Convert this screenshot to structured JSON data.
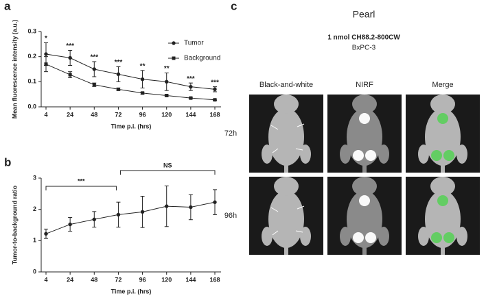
{
  "panel_labels": [
    "a",
    "b",
    "c"
  ],
  "chart_data": [
    {
      "type": "line",
      "categories": [
        "4",
        "24",
        "48",
        "72",
        "96",
        "120",
        "144",
        "168"
      ],
      "x_label": "Time p.i. (hrs)",
      "y_label": "Mean fluorescence intensity (a.u.)",
      "ylim": [
        0,
        0.3
      ],
      "yticks": [
        {
          "value": 0,
          "label": "0.0"
        },
        {
          "value": 0.1,
          "label": "0.1"
        },
        {
          "value": 0.2,
          "label": "0.2"
        },
        {
          "value": 0.3,
          "label": "0.3"
        }
      ],
      "legend": "upper right",
      "series": [
        {
          "name": "Tumor",
          "color": "#222222",
          "marker": "circle",
          "values": [
            0.21,
            0.195,
            0.15,
            0.13,
            0.11,
            0.1,
            0.08,
            0.07
          ],
          "errors": [
            0.045,
            0.03,
            0.03,
            0.03,
            0.035,
            0.035,
            0.015,
            0.01
          ]
        },
        {
          "name": "Background",
          "color": "#222222",
          "marker": "square",
          "values": [
            0.17,
            0.128,
            0.088,
            0.07,
            0.055,
            0.045,
            0.035,
            0.028
          ],
          "errors": [
            0.03,
            0.012,
            0.007,
            0.005,
            0.004,
            0.004,
            0.003,
            0.002
          ]
        }
      ],
      "annotations": [
        "*",
        "***",
        "***",
        "***",
        "**",
        "**",
        "***",
        "***"
      ]
    },
    {
      "type": "line",
      "categories": [
        "4",
        "24",
        "48",
        "72",
        "96",
        "120",
        "144",
        "168"
      ],
      "x_label": "Time p.i. (hrs)",
      "y_label": "Tumor-to-background ratio",
      "ylim": [
        0,
        3
      ],
      "yticks": [
        0,
        1,
        2,
        3
      ],
      "series": [
        {
          "color": "#222222",
          "marker": "circle",
          "values": [
            1.22,
            1.52,
            1.68,
            1.83,
            1.92,
            2.1,
            2.07,
            2.23
          ],
          "errors": [
            0.15,
            0.22,
            0.25,
            0.4,
            0.5,
            0.65,
            0.4,
            0.4
          ]
        }
      ],
      "brackets": [
        {
          "label": "***",
          "start": "4",
          "end": "72"
        },
        {
          "label": "NS",
          "start": "72",
          "end": "168"
        }
      ]
    }
  ],
  "images": {
    "title": "Pearl",
    "agent": "1 nmol CH88.2-800CW",
    "cell_line": "BxPC-3",
    "columns": [
      "Black-and-white",
      "NIRF",
      "Merge"
    ],
    "rows": [
      "72h",
      "96h"
    ]
  }
}
